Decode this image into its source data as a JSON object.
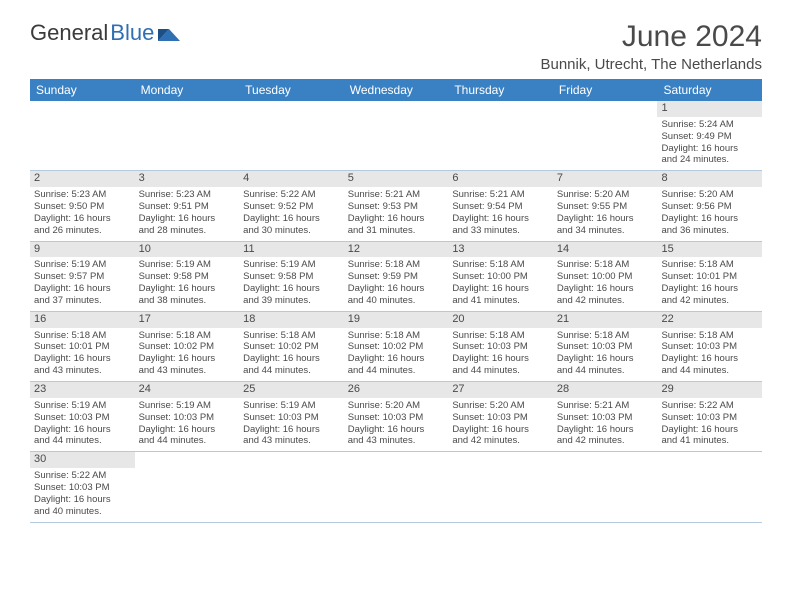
{
  "brand": {
    "part1": "General",
    "part2": "Blue"
  },
  "title": "June 2024",
  "location": "Bunnik, Utrecht, The Netherlands",
  "colors": {
    "header_bg": "#3a81c4",
    "header_text": "#ffffff",
    "daynum_bg": "#e7e7e7",
    "border": "#b5c9dc",
    "text": "#4a4a4a",
    "brand_blue": "#2f6fb3"
  },
  "day_names": [
    "Sunday",
    "Monday",
    "Tuesday",
    "Wednesday",
    "Thursday",
    "Friday",
    "Saturday"
  ],
  "weeks": [
    [
      null,
      null,
      null,
      null,
      null,
      null,
      {
        "n": "1",
        "sr": "Sunrise: 5:24 AM",
        "ss": "Sunset: 9:49 PM",
        "d1": "Daylight: 16 hours",
        "d2": "and 24 minutes."
      }
    ],
    [
      {
        "n": "2",
        "sr": "Sunrise: 5:23 AM",
        "ss": "Sunset: 9:50 PM",
        "d1": "Daylight: 16 hours",
        "d2": "and 26 minutes."
      },
      {
        "n": "3",
        "sr": "Sunrise: 5:23 AM",
        "ss": "Sunset: 9:51 PM",
        "d1": "Daylight: 16 hours",
        "d2": "and 28 minutes."
      },
      {
        "n": "4",
        "sr": "Sunrise: 5:22 AM",
        "ss": "Sunset: 9:52 PM",
        "d1": "Daylight: 16 hours",
        "d2": "and 30 minutes."
      },
      {
        "n": "5",
        "sr": "Sunrise: 5:21 AM",
        "ss": "Sunset: 9:53 PM",
        "d1": "Daylight: 16 hours",
        "d2": "and 31 minutes."
      },
      {
        "n": "6",
        "sr": "Sunrise: 5:21 AM",
        "ss": "Sunset: 9:54 PM",
        "d1": "Daylight: 16 hours",
        "d2": "and 33 minutes."
      },
      {
        "n": "7",
        "sr": "Sunrise: 5:20 AM",
        "ss": "Sunset: 9:55 PM",
        "d1": "Daylight: 16 hours",
        "d2": "and 34 minutes."
      },
      {
        "n": "8",
        "sr": "Sunrise: 5:20 AM",
        "ss": "Sunset: 9:56 PM",
        "d1": "Daylight: 16 hours",
        "d2": "and 36 minutes."
      }
    ],
    [
      {
        "n": "9",
        "sr": "Sunrise: 5:19 AM",
        "ss": "Sunset: 9:57 PM",
        "d1": "Daylight: 16 hours",
        "d2": "and 37 minutes."
      },
      {
        "n": "10",
        "sr": "Sunrise: 5:19 AM",
        "ss": "Sunset: 9:58 PM",
        "d1": "Daylight: 16 hours",
        "d2": "and 38 minutes."
      },
      {
        "n": "11",
        "sr": "Sunrise: 5:19 AM",
        "ss": "Sunset: 9:58 PM",
        "d1": "Daylight: 16 hours",
        "d2": "and 39 minutes."
      },
      {
        "n": "12",
        "sr": "Sunrise: 5:18 AM",
        "ss": "Sunset: 9:59 PM",
        "d1": "Daylight: 16 hours",
        "d2": "and 40 minutes."
      },
      {
        "n": "13",
        "sr": "Sunrise: 5:18 AM",
        "ss": "Sunset: 10:00 PM",
        "d1": "Daylight: 16 hours",
        "d2": "and 41 minutes."
      },
      {
        "n": "14",
        "sr": "Sunrise: 5:18 AM",
        "ss": "Sunset: 10:00 PM",
        "d1": "Daylight: 16 hours",
        "d2": "and 42 minutes."
      },
      {
        "n": "15",
        "sr": "Sunrise: 5:18 AM",
        "ss": "Sunset: 10:01 PM",
        "d1": "Daylight: 16 hours",
        "d2": "and 42 minutes."
      }
    ],
    [
      {
        "n": "16",
        "sr": "Sunrise: 5:18 AM",
        "ss": "Sunset: 10:01 PM",
        "d1": "Daylight: 16 hours",
        "d2": "and 43 minutes."
      },
      {
        "n": "17",
        "sr": "Sunrise: 5:18 AM",
        "ss": "Sunset: 10:02 PM",
        "d1": "Daylight: 16 hours",
        "d2": "and 43 minutes."
      },
      {
        "n": "18",
        "sr": "Sunrise: 5:18 AM",
        "ss": "Sunset: 10:02 PM",
        "d1": "Daylight: 16 hours",
        "d2": "and 44 minutes."
      },
      {
        "n": "19",
        "sr": "Sunrise: 5:18 AM",
        "ss": "Sunset: 10:02 PM",
        "d1": "Daylight: 16 hours",
        "d2": "and 44 minutes."
      },
      {
        "n": "20",
        "sr": "Sunrise: 5:18 AM",
        "ss": "Sunset: 10:03 PM",
        "d1": "Daylight: 16 hours",
        "d2": "and 44 minutes."
      },
      {
        "n": "21",
        "sr": "Sunrise: 5:18 AM",
        "ss": "Sunset: 10:03 PM",
        "d1": "Daylight: 16 hours",
        "d2": "and 44 minutes."
      },
      {
        "n": "22",
        "sr": "Sunrise: 5:18 AM",
        "ss": "Sunset: 10:03 PM",
        "d1": "Daylight: 16 hours",
        "d2": "and 44 minutes."
      }
    ],
    [
      {
        "n": "23",
        "sr": "Sunrise: 5:19 AM",
        "ss": "Sunset: 10:03 PM",
        "d1": "Daylight: 16 hours",
        "d2": "and 44 minutes."
      },
      {
        "n": "24",
        "sr": "Sunrise: 5:19 AM",
        "ss": "Sunset: 10:03 PM",
        "d1": "Daylight: 16 hours",
        "d2": "and 44 minutes."
      },
      {
        "n": "25",
        "sr": "Sunrise: 5:19 AM",
        "ss": "Sunset: 10:03 PM",
        "d1": "Daylight: 16 hours",
        "d2": "and 43 minutes."
      },
      {
        "n": "26",
        "sr": "Sunrise: 5:20 AM",
        "ss": "Sunset: 10:03 PM",
        "d1": "Daylight: 16 hours",
        "d2": "and 43 minutes."
      },
      {
        "n": "27",
        "sr": "Sunrise: 5:20 AM",
        "ss": "Sunset: 10:03 PM",
        "d1": "Daylight: 16 hours",
        "d2": "and 42 minutes."
      },
      {
        "n": "28",
        "sr": "Sunrise: 5:21 AM",
        "ss": "Sunset: 10:03 PM",
        "d1": "Daylight: 16 hours",
        "d2": "and 42 minutes."
      },
      {
        "n": "29",
        "sr": "Sunrise: 5:22 AM",
        "ss": "Sunset: 10:03 PM",
        "d1": "Daylight: 16 hours",
        "d2": "and 41 minutes."
      }
    ],
    [
      {
        "n": "30",
        "sr": "Sunrise: 5:22 AM",
        "ss": "Sunset: 10:03 PM",
        "d1": "Daylight: 16 hours",
        "d2": "and 40 minutes."
      },
      null,
      null,
      null,
      null,
      null,
      null
    ]
  ]
}
